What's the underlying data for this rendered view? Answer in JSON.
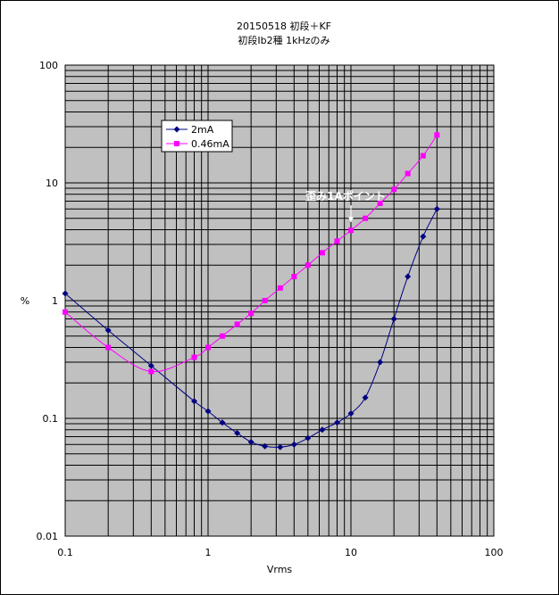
{
  "chart_data": {
    "type": "scatter",
    "title": [
      "20150518 初段＋KF",
      "初段Ib2種 1kHzのみ"
    ],
    "xlabel": "Vrms",
    "ylabel": "%",
    "xscale": "log",
    "yscale": "log",
    "xlim": [
      0.1,
      100
    ],
    "ylim": [
      0.01,
      100
    ],
    "x_tick_labels": [
      "0.1",
      "1",
      "10",
      "100"
    ],
    "y_tick_labels": [
      "0.01",
      "0.1",
      "1",
      "10",
      "100"
    ],
    "grid": true,
    "plot_background": "#c0c0c0",
    "legend_position": "upper-left",
    "series": [
      {
        "name": "2mA",
        "color": "#000080",
        "marker": "diamond",
        "points": [
          [
            0.1,
            1.15
          ],
          [
            0.2,
            0.56
          ],
          [
            0.4,
            0.28
          ],
          [
            0.8,
            0.14
          ],
          [
            1.0,
            0.115
          ],
          [
            1.26,
            0.092
          ],
          [
            1.6,
            0.075
          ],
          [
            2.0,
            0.063
          ],
          [
            2.5,
            0.058
          ],
          [
            3.2,
            0.057
          ],
          [
            4.0,
            0.06
          ],
          [
            5.0,
            0.068
          ],
          [
            6.3,
            0.08
          ],
          [
            8.0,
            0.092
          ],
          [
            10.0,
            0.11
          ],
          [
            12.6,
            0.15
          ],
          [
            16.0,
            0.3
          ],
          [
            20.0,
            0.7
          ],
          [
            25.0,
            1.6
          ],
          [
            32.0,
            3.5
          ],
          [
            40.0,
            6.0
          ]
        ]
      },
      {
        "name": "0.46mA",
        "color": "#ff00ff",
        "marker": "square",
        "points": [
          [
            0.1,
            0.8
          ],
          [
            0.2,
            0.4
          ],
          [
            0.4,
            0.25
          ],
          [
            0.8,
            0.33
          ],
          [
            1.0,
            0.4
          ],
          [
            1.26,
            0.5
          ],
          [
            1.6,
            0.63
          ],
          [
            2.0,
            0.78
          ],
          [
            2.5,
            1.0
          ],
          [
            3.2,
            1.28
          ],
          [
            4.0,
            1.6
          ],
          [
            5.0,
            2.0
          ],
          [
            6.3,
            2.55
          ],
          [
            8.0,
            3.2
          ],
          [
            10.0,
            3.95
          ],
          [
            12.6,
            5.0
          ],
          [
            16.0,
            6.7
          ],
          [
            20.0,
            8.8
          ],
          [
            25.0,
            12.0
          ],
          [
            32.0,
            17.0
          ],
          [
            40.0,
            25.5
          ]
        ]
      }
    ],
    "annotations": [
      {
        "text": "歪み1Aポイント",
        "x": 10.0,
        "y": 3.95
      }
    ]
  }
}
